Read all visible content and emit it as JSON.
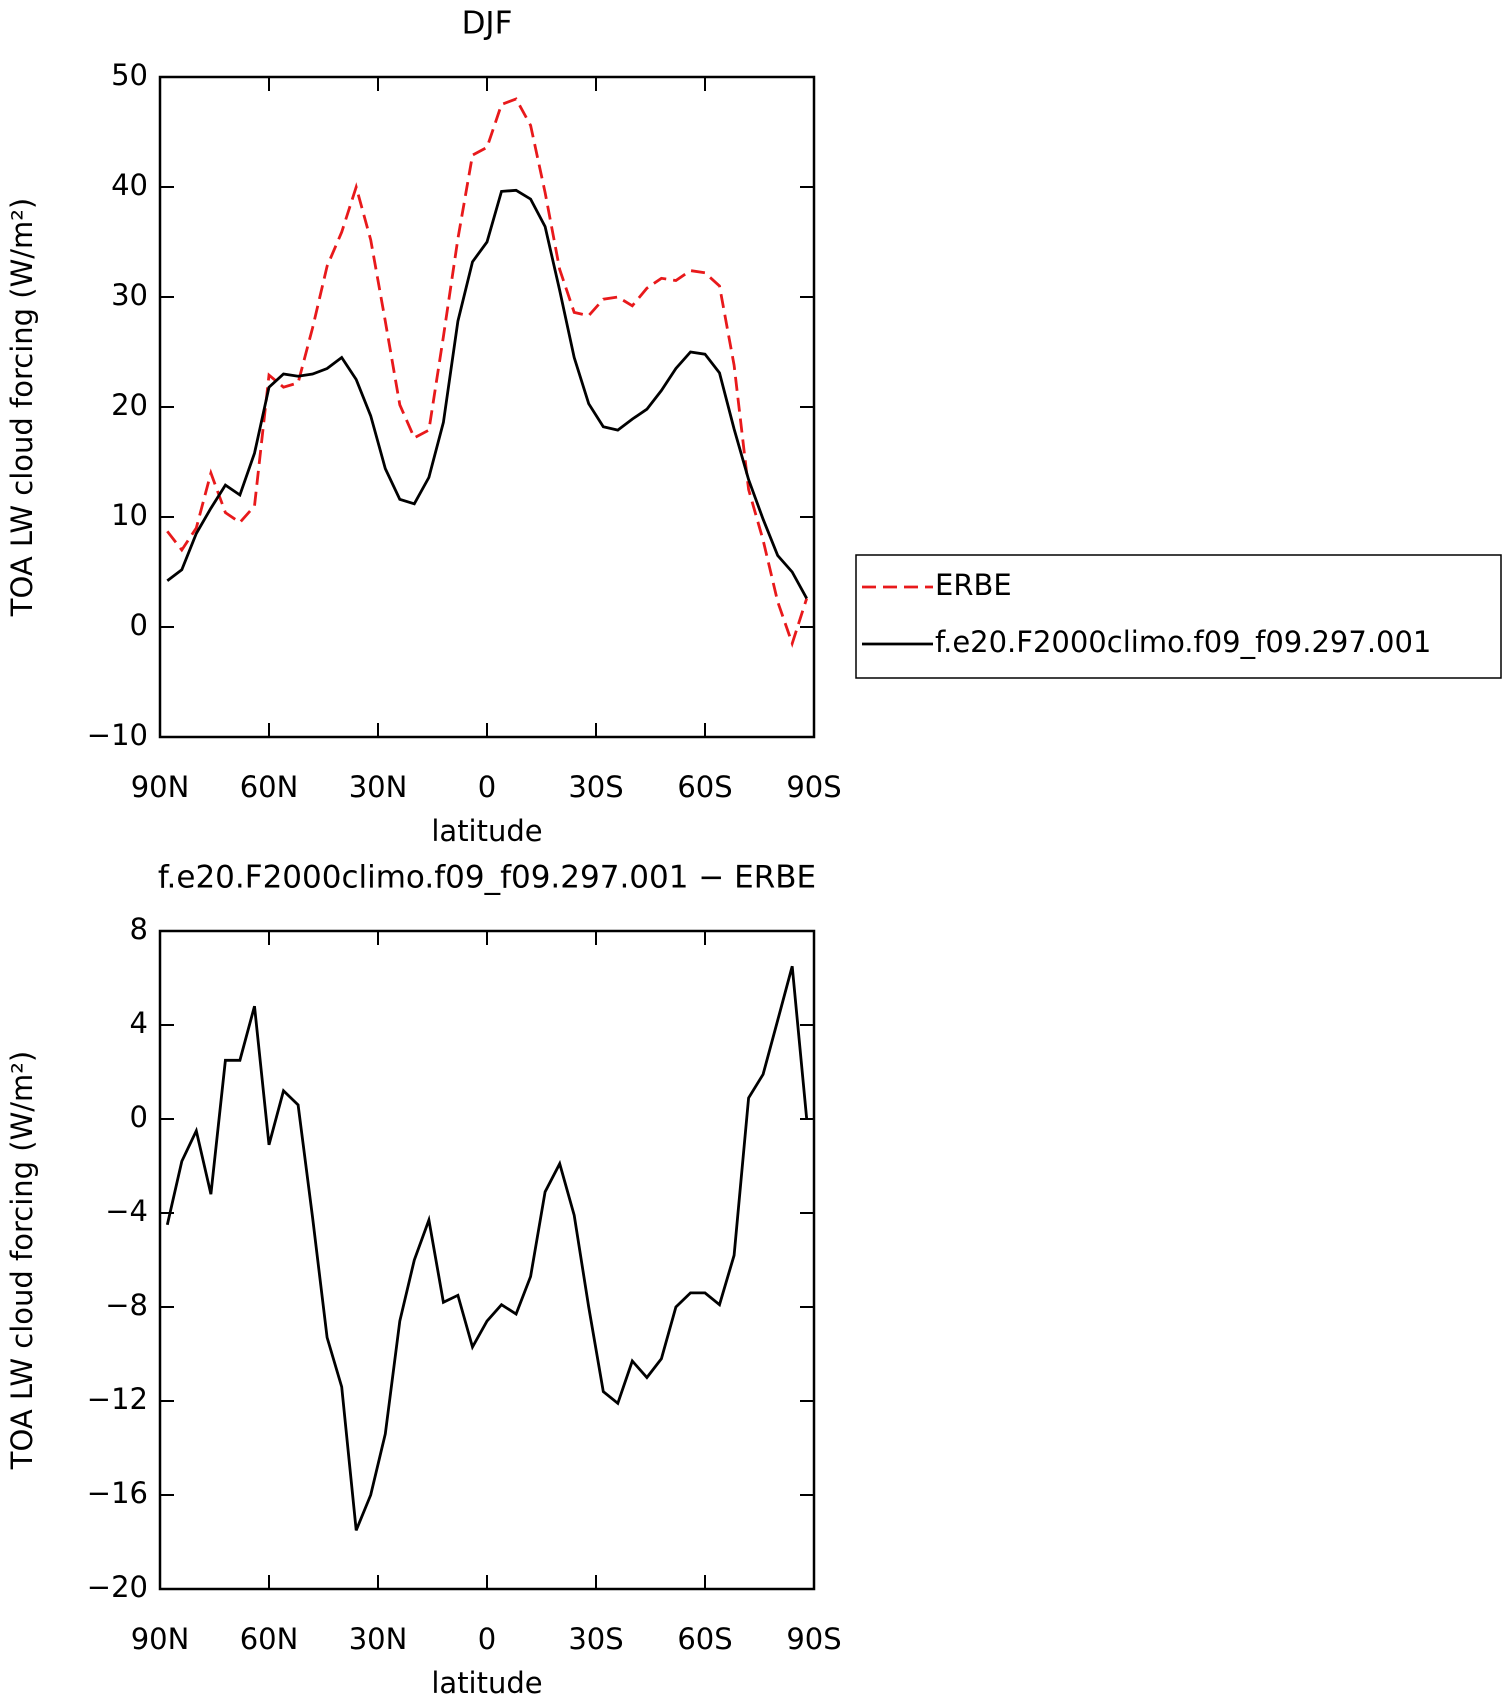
{
  "chart_data": [
    {
      "type": "line",
      "title": "DJF",
      "xlabel": "latitude",
      "ylabel": "TOA LW cloud forcing (W/m²)",
      "x": [
        88,
        84,
        80,
        76,
        72,
        68,
        64,
        60,
        56,
        52,
        48,
        44,
        40,
        36,
        32,
        28,
        24,
        20,
        16,
        12,
        8,
        4,
        0,
        -4,
        -8,
        -12,
        -16,
        -20,
        -24,
        -28,
        -32,
        -36,
        -40,
        -44,
        -48,
        -52,
        -56,
        -60,
        -64,
        -68,
        -72,
        -76,
        -80,
        -84,
        -88
      ],
      "xlim": [
        90,
        -90
      ],
      "xticks": [
        {
          "value": 90,
          "label": "90N"
        },
        {
          "value": 60,
          "label": "60N"
        },
        {
          "value": 30,
          "label": "30N"
        },
        0,
        {
          "value": -30,
          "label": "30S"
        },
        {
          "value": -60,
          "label": "60S"
        },
        {
          "value": -90,
          "label": "90S"
        }
      ],
      "ylim": [
        -10,
        50
      ],
      "yticks": [
        {
          "value": -10,
          "label": "−10"
        },
        0,
        10,
        20,
        30,
        40,
        50
      ],
      "legend": "right",
      "series": [
        {
          "name": "ERBE",
          "color": "#e8191b",
          "line_style": "dashed",
          "values": [
            8.7,
            7.0,
            9.0,
            14.0,
            10.4,
            9.5,
            11.0,
            22.9,
            21.8,
            22.2,
            27.2,
            32.8,
            35.9,
            40.0,
            35.2,
            27.8,
            20.2,
            17.2,
            17.9,
            26.4,
            35.3,
            42.9,
            43.6,
            47.5,
            48.0,
            45.6,
            39.5,
            32.5,
            28.6,
            28.3,
            29.8,
            30.0,
            29.2,
            30.8,
            31.7,
            31.5,
            32.4,
            32.2,
            31.0,
            23.8,
            12.5,
            7.9,
            2.3,
            -1.5,
            2.6
          ]
        },
        {
          "name": "f.e20.F2000climo.f09_f09.297.001",
          "color": "#000000",
          "line_style": "solid",
          "values": [
            4.2,
            5.2,
            8.5,
            10.8,
            12.9,
            12.0,
            15.8,
            21.8,
            23.0,
            22.8,
            23.0,
            23.5,
            24.5,
            22.5,
            19.2,
            14.4,
            11.6,
            11.2,
            13.6,
            18.6,
            27.8,
            33.2,
            35.0,
            39.6,
            39.7,
            38.9,
            36.4,
            30.6,
            24.5,
            20.3,
            18.2,
            17.9,
            18.9,
            19.8,
            21.5,
            23.5,
            25.0,
            24.8,
            23.1,
            18.0,
            13.4,
            9.8,
            6.5,
            5.0,
            2.6
          ]
        }
      ]
    },
    {
      "type": "line",
      "title": "f.e20.F2000climo.f09_f09.297.001 − ERBE",
      "xlabel": "latitude",
      "ylabel": "TOA LW cloud forcing (W/m²)",
      "x": [
        88,
        84,
        80,
        76,
        72,
        68,
        64,
        60,
        56,
        52,
        48,
        44,
        40,
        36,
        32,
        28,
        24,
        20,
        16,
        12,
        8,
        4,
        0,
        -4,
        -8,
        -12,
        -16,
        -20,
        -24,
        -28,
        -32,
        -36,
        -40,
        -44,
        -48,
        -52,
        -56,
        -60,
        -64,
        -68,
        -72,
        -76,
        -80,
        -84,
        -88
      ],
      "xlim": [
        90,
        -90
      ],
      "xticks": [
        {
          "value": 90,
          "label": "90N"
        },
        {
          "value": 60,
          "label": "60N"
        },
        {
          "value": 30,
          "label": "30N"
        },
        0,
        {
          "value": -30,
          "label": "30S"
        },
        {
          "value": -60,
          "label": "60S"
        },
        {
          "value": -90,
          "label": "90S"
        }
      ],
      "ylim": [
        -20,
        8
      ],
      "yticks": [
        {
          "value": -20,
          "label": "−20"
        },
        {
          "value": -16,
          "label": "−16"
        },
        {
          "value": -12,
          "label": "−12"
        },
        {
          "value": -8,
          "label": "−8"
        },
        {
          "value": -4,
          "label": "−4"
        },
        0,
        4,
        8
      ],
      "series": [
        {
          "color": "#000000",
          "line_style": "solid",
          "values": [
            -4.5,
            -1.8,
            -0.5,
            -3.2,
            2.5,
            2.5,
            4.8,
            -1.1,
            1.2,
            0.6,
            -4.2,
            -9.3,
            -11.4,
            -17.5,
            -16.0,
            -13.4,
            -8.6,
            -6.0,
            -4.3,
            -7.8,
            -7.5,
            -9.7,
            -8.6,
            -7.9,
            -8.3,
            -6.7,
            -3.1,
            -1.9,
            -4.1,
            -8.0,
            -11.6,
            -12.1,
            -10.3,
            -11.0,
            -10.2,
            -8.0,
            -7.4,
            -7.4,
            -7.9,
            -5.8,
            0.9,
            1.9,
            4.2,
            6.5,
            0.0
          ]
        }
      ]
    }
  ]
}
